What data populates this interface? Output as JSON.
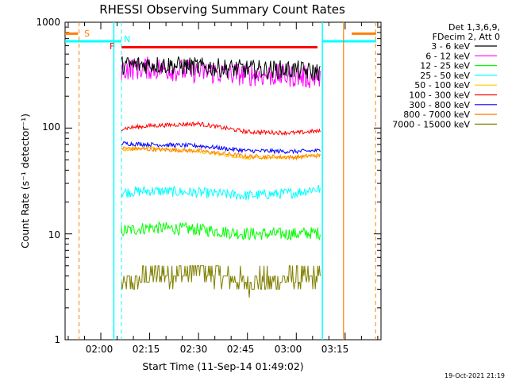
{
  "chart_data": {
    "type": "line",
    "title": "RHESSI Observing Summary Count Rates",
    "xlabel": "Start Time (11-Sep-14 01:49:02)",
    "ylabel": "Count Rate (s⁻¹ detector⁻¹)",
    "yscale": "log",
    "ylim": [
      1,
      1000
    ],
    "xlim": [
      "01:49:02",
      "03:26:00"
    ],
    "x_ticks": [
      "02:00",
      "02:15",
      "02:30",
      "02:45",
      "03:00",
      "03:15"
    ],
    "y_ticks": [
      "1",
      "10",
      "100",
      "1000"
    ],
    "grid": false,
    "legend_position": "right",
    "legend_header": [
      "Det 1,3,6,9,",
      "FDecim 2, Att 0"
    ],
    "series": [
      {
        "name": "3 - 6 keV",
        "color": "#000000",
        "x": [
          "02:05",
          "02:15",
          "02:30",
          "02:45",
          "03:00",
          "03:05"
        ],
        "y": [
          390,
          400,
          380,
          360,
          355,
          340
        ]
      },
      {
        "name": "6 - 12 keV",
        "color": "#ff00ff",
        "x": [
          "02:05",
          "02:15",
          "02:30",
          "02:45",
          "03:00",
          "03:05"
        ],
        "y": [
          360,
          370,
          340,
          320,
          310,
          300
        ]
      },
      {
        "name": "12 - 25 keV",
        "color": "#00ff00",
        "x": [
          "02:05",
          "02:15",
          "02:30",
          "02:45",
          "03:00",
          "03:05"
        ],
        "y": [
          10.5,
          11.5,
          11.0,
          10.0,
          10.0,
          10.2
        ]
      },
      {
        "name": "25 - 50 keV",
        "color": "#00ffff",
        "x": [
          "02:05",
          "02:15",
          "02:30",
          "02:45",
          "03:00",
          "03:05"
        ],
        "y": [
          24.5,
          25.5,
          24.5,
          23.0,
          24.5,
          26.5
        ]
      },
      {
        "name": "50 - 100 keV",
        "color": "#ffc800",
        "x": [
          "02:05",
          "02:15",
          "02:30",
          "02:45",
          "03:00",
          "03:05"
        ],
        "y": [
          62,
          65,
          60,
          52,
          53,
          55
        ]
      },
      {
        "name": "100 - 300 keV",
        "color": "#ff0000",
        "x": [
          "02:05",
          "02:15",
          "02:30",
          "02:45",
          "03:00",
          "03:05"
        ],
        "y": [
          98,
          105,
          110,
          92,
          90,
          93
        ]
      },
      {
        "name": "300 - 800 keV",
        "color": "#0000ff",
        "x": [
          "02:05",
          "02:15",
          "02:30",
          "02:45",
          "03:00",
          "03:05"
        ],
        "y": [
          72,
          70,
          68,
          61,
          60,
          61
        ]
      },
      {
        "name": "800 - 7000 keV",
        "color": "#ff8000",
        "x": [
          "02:05",
          "02:15",
          "02:30",
          "02:45",
          "03:00",
          "03:05"
        ],
        "y": [
          65,
          63,
          61,
          54,
          53,
          55
        ]
      },
      {
        "name": "7000 - 15000 keV",
        "color": "#808000",
        "x": [
          "02:05",
          "02:15",
          "02:30",
          "02:45",
          "03:00",
          "03:05"
        ],
        "y": [
          3.2,
          4.0,
          4.5,
          3.5,
          3.7,
          3.8
        ]
      }
    ],
    "annotations": [
      "S",
      "N",
      "F"
    ]
  },
  "footer_date": "19-Oct-2021 21:19"
}
